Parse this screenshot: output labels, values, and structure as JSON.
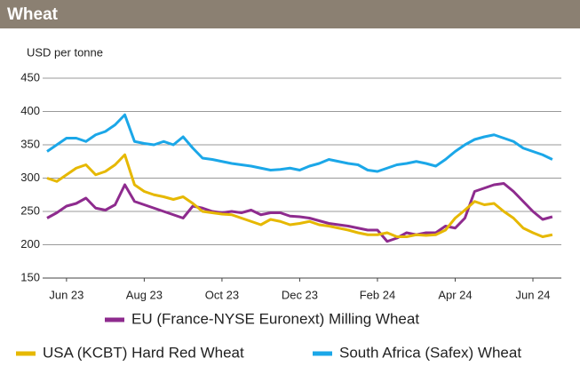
{
  "chart_data": {
    "type": "line",
    "title": "Wheat",
    "y_label": "USD per tonne",
    "categories": [
      null,
      null,
      "Jun 23",
      null,
      null,
      null,
      null,
      null,
      null,
      null,
      "Aug 23",
      null,
      null,
      null,
      null,
      null,
      null,
      null,
      "Oct 23",
      null,
      null,
      null,
      null,
      null,
      null,
      null,
      "Dec 23",
      null,
      null,
      null,
      null,
      null,
      null,
      null,
      "Feb 24",
      null,
      null,
      null,
      null,
      null,
      null,
      null,
      "Apr 24",
      null,
      null,
      null,
      null,
      null,
      null,
      null,
      "Jun 24",
      null,
      null
    ],
    "series": [
      {
        "name": "EU (France-NYSE Euronext) Milling Wheat",
        "color": "#8e2b8e",
        "values": [
          240,
          248,
          258,
          262,
          270,
          255,
          252,
          260,
          290,
          265,
          260,
          255,
          250,
          245,
          240,
          258,
          255,
          250,
          248,
          250,
          248,
          252,
          245,
          248,
          248,
          243,
          242,
          240,
          236,
          232,
          230,
          228,
          225,
          222,
          222,
          205,
          210,
          218,
          215,
          218,
          218,
          228,
          225,
          240,
          280,
          285,
          290,
          292,
          280,
          265,
          250,
          238,
          242
        ]
      },
      {
        "name": "USA (KCBT) Hard Red Wheat",
        "color": "#e6b800",
        "values": [
          300,
          295,
          305,
          315,
          320,
          305,
          310,
          320,
          335,
          290,
          280,
          275,
          272,
          268,
          272,
          262,
          250,
          248,
          246,
          245,
          240,
          235,
          230,
          238,
          235,
          230,
          232,
          235,
          230,
          228,
          225,
          222,
          218,
          215,
          215,
          218,
          212,
          212,
          215,
          214,
          215,
          222,
          240,
          252,
          265,
          260,
          262,
          250,
          240,
          225,
          218,
          212,
          215
        ]
      },
      {
        "name": "South Africa (Safex) Wheat",
        "color": "#1ba7e8",
        "values": [
          340,
          350,
          360,
          360,
          355,
          365,
          370,
          380,
          395,
          355,
          352,
          350,
          355,
          350,
          362,
          345,
          330,
          328,
          325,
          322,
          320,
          318,
          315,
          312,
          313,
          315,
          312,
          318,
          322,
          328,
          325,
          322,
          320,
          312,
          310,
          315,
          320,
          322,
          325,
          322,
          318,
          328,
          340,
          350,
          358,
          362,
          365,
          360,
          355,
          345,
          340,
          335,
          328
        ]
      }
    ],
    "ylim": [
      150,
      450
    ],
    "yticks": [
      150,
      200,
      250,
      300,
      350,
      400,
      450
    ],
    "grid": true
  }
}
